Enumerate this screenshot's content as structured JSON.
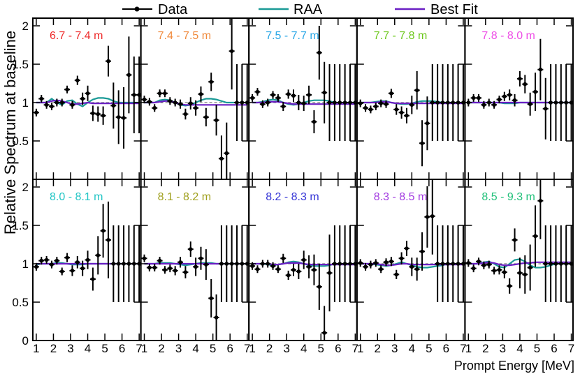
{
  "chart_data": {
    "type": "scatter",
    "ylabel": "Relative Spectrum at baseline",
    "xlabel": "Prompt Energy [MeV]",
    "xlim": [
      0.8,
      7.1
    ],
    "ylim": [
      0,
      2.1
    ],
    "x_ticks": [
      "1",
      "2",
      "3",
      "4",
      "5",
      "6",
      "7"
    ],
    "y_ticks": [
      "0",
      "0.5",
      "1",
      "1.5",
      "2"
    ],
    "legend": {
      "position": "top",
      "entries": [
        {
          "label": "Data",
          "color": "#000000",
          "kind": "marker"
        },
        {
          "label": "RAA",
          "color": "#1a9a96",
          "kind": "line"
        },
        {
          "label": "Best Fit",
          "color": "#6a1fc4",
          "kind": "line"
        }
      ]
    },
    "x": [
      1.0,
      1.3,
      1.6,
      1.9,
      2.2,
      2.5,
      2.8,
      3.1,
      3.4,
      3.7,
      4.0,
      4.3,
      4.6,
      4.9,
      5.2,
      5.5,
      5.8,
      6.1,
      6.4,
      6.7,
      7.0
    ],
    "panels": [
      {
        "label": "6.7 - 7.4 m",
        "color": "#ee2b2b",
        "y": [
          0.87,
          1.05,
          0.97,
          0.95,
          1.0,
          1.0,
          1.17,
          0.97,
          1.29,
          1.05,
          1.12,
          0.86,
          0.85,
          0.83,
          1.54,
          0.96,
          0.81,
          0.8,
          1.36,
          1.1,
          1.1
        ],
        "err": [
          0.05,
          0.05,
          0.05,
          0.05,
          0.05,
          0.05,
          0.05,
          0.05,
          0.06,
          0.08,
          0.1,
          0.1,
          0.1,
          0.12,
          0.2,
          0.3,
          0.35,
          0.4,
          0.5,
          0.5,
          0.5
        ],
        "raa": [
          1.0,
          1.0,
          1.0,
          1.05,
          1.0,
          0.97,
          1.02,
          1.03,
          0.98,
          0.95,
          1.0,
          1.04,
          1.06,
          1.06,
          1.05,
          1.02,
          1.0,
          1.0,
          1.0,
          1.0,
          1.0
        ],
        "fit": [
          1.0,
          1.0,
          1.0,
          1.02,
          1.03,
          1.02,
          1.0,
          0.98,
          0.98,
          0.99,
          1.0,
          0.99,
          0.99,
          0.99,
          0.99,
          0.99,
          0.99,
          0.99,
          0.99,
          0.99,
          0.99
        ]
      },
      {
        "label": "7.4 - 7.5 m",
        "color": "#f08a3c",
        "y": [
          1.04,
          1.01,
          0.93,
          1.12,
          1.12,
          1.02,
          1.0,
          0.98,
          0.85,
          0.99,
          0.93,
          1.11,
          0.81,
          1.27,
          0.77,
          0.27,
          0.34,
          1.67,
          1.0,
          1.0,
          1.0
        ],
        "err": [
          0.05,
          0.05,
          0.05,
          0.05,
          0.05,
          0.05,
          0.05,
          0.06,
          0.07,
          0.08,
          0.1,
          0.1,
          0.12,
          0.12,
          0.2,
          0.3,
          0.4,
          0.5,
          0.5,
          0.5,
          0.5
        ],
        "raa": [
          1.0,
          1.0,
          1.0,
          1.03,
          1.04,
          1.03,
          1.0,
          0.97,
          0.96,
          0.97,
          1.0,
          1.03,
          1.05,
          1.05,
          1.04,
          1.02,
          1.0,
          1.0,
          1.0,
          1.0,
          1.0
        ],
        "fit": [
          1.0,
          1.0,
          1.0,
          1.01,
          1.02,
          1.02,
          1.0,
          0.98,
          0.97,
          0.97,
          0.97,
          0.97,
          0.97,
          0.97,
          0.97,
          0.97,
          0.97,
          0.97,
          0.97,
          0.97,
          0.97
        ]
      },
      {
        "label": "7.5 - 7.7 m",
        "color": "#2aa7e6",
        "y": [
          1.06,
          1.14,
          0.98,
          1.0,
          1.1,
          1.06,
          0.95,
          1.11,
          1.09,
          1.0,
          0.99,
          1.1,
          0.75,
          1.65,
          1.13,
          1.0,
          1.0,
          1.0,
          1.0,
          1.0,
          1.0
        ],
        "err": [
          0.05,
          0.05,
          0.05,
          0.05,
          0.05,
          0.05,
          0.06,
          0.06,
          0.08,
          0.1,
          0.1,
          0.12,
          0.15,
          0.35,
          0.4,
          0.5,
          0.5,
          0.5,
          0.5,
          0.5,
          0.5
        ],
        "raa": [
          1.0,
          1.0,
          1.01,
          1.03,
          1.04,
          1.03,
          1.0,
          0.98,
          0.97,
          0.98,
          1.0,
          1.02,
          1.03,
          1.03,
          1.03,
          1.02,
          1.0,
          1.0,
          1.0,
          1.0,
          1.0
        ],
        "fit": [
          1.0,
          1.0,
          1.0,
          1.01,
          1.01,
          1.01,
          1.0,
          0.99,
          0.98,
          0.98,
          0.98,
          0.98,
          0.98,
          0.98,
          0.98,
          0.98,
          0.98,
          0.98,
          0.98,
          0.98,
          0.98
        ]
      },
      {
        "label": "7.7 - 7.8 m",
        "color": "#6ec81e",
        "y": [
          0.99,
          0.93,
          0.91,
          0.95,
          0.99,
          0.98,
          1.12,
          0.91,
          0.87,
          0.83,
          0.97,
          1.16,
          0.47,
          0.73,
          1.0,
          1.0,
          1.0,
          1.0,
          1.0,
          1.0,
          1.0
        ],
        "err": [
          0.05,
          0.05,
          0.05,
          0.05,
          0.05,
          0.05,
          0.06,
          0.07,
          0.08,
          0.1,
          0.12,
          0.25,
          0.3,
          0.35,
          0.5,
          0.5,
          0.5,
          0.5,
          0.5,
          0.5,
          0.5
        ],
        "raa": [
          1.0,
          1.0,
          1.0,
          1.01,
          1.02,
          1.02,
          1.0,
          0.99,
          0.98,
          0.98,
          0.99,
          1.01,
          1.02,
          1.02,
          1.02,
          1.01,
          1.0,
          1.0,
          1.0,
          1.0,
          1.0
        ],
        "fit": [
          1.0,
          1.0,
          1.0,
          1.0,
          1.01,
          1.01,
          1.0,
          0.99,
          0.99,
          0.99,
          0.99,
          0.99,
          0.99,
          0.99,
          0.99,
          0.99,
          0.99,
          0.99,
          0.99,
          0.99,
          0.99
        ]
      },
      {
        "label": "7.8 - 8.0 m",
        "color": "#ee4de6",
        "y": [
          1.0,
          1.06,
          1.06,
          0.97,
          1.0,
          0.97,
          1.04,
          1.08,
          1.1,
          1.03,
          1.31,
          1.24,
          0.98,
          1.14,
          1.43,
          0.92,
          1.0,
          1.0,
          1.0,
          1.0,
          1.0
        ],
        "err": [
          0.05,
          0.05,
          0.05,
          0.05,
          0.05,
          0.05,
          0.05,
          0.06,
          0.07,
          0.08,
          0.1,
          0.12,
          0.15,
          0.25,
          0.4,
          0.4,
          0.5,
          0.5,
          0.5,
          0.5,
          0.5
        ],
        "raa": [
          1.0,
          1.0,
          1.0,
          1.0,
          1.0,
          1.0,
          1.0,
          0.99,
          0.99,
          0.99,
          1.0,
          1.0,
          1.0,
          1.0,
          1.0,
          1.0,
          1.0,
          1.0,
          1.0,
          1.0,
          1.0
        ],
        "fit": [
          1.0,
          1.0,
          1.0,
          1.0,
          1.0,
          1.0,
          1.0,
          1.0,
          1.0,
          1.0,
          1.0,
          1.0,
          1.0,
          1.0,
          1.0,
          1.0,
          1.0,
          1.0,
          1.0,
          1.0,
          1.0
        ]
      },
      {
        "label": "8.0 - 8.1 m",
        "color": "#22c5c5",
        "y": [
          0.96,
          1.04,
          1.05,
          0.99,
          1.04,
          0.9,
          1.08,
          0.91,
          1.02,
          0.94,
          1.05,
          0.8,
          1.11,
          1.43,
          1.31,
          1.0,
          1.0,
          1.0,
          1.0,
          1.0,
          1.0
        ],
        "err": [
          0.05,
          0.05,
          0.05,
          0.05,
          0.05,
          0.05,
          0.06,
          0.07,
          0.08,
          0.1,
          0.12,
          0.15,
          0.25,
          0.35,
          0.5,
          0.5,
          0.5,
          0.5,
          0.5,
          0.5,
          0.5
        ],
        "raa": [
          0.99,
          1.0,
          1.0,
          1.0,
          1.01,
          1.01,
          1.0,
          0.99,
          0.99,
          0.99,
          1.0,
          1.0,
          1.0,
          1.0,
          1.0,
          1.0,
          1.0,
          1.0,
          1.0,
          1.0,
          1.0
        ],
        "fit": [
          1.0,
          1.0,
          1.0,
          1.0,
          1.0,
          1.0,
          1.0,
          1.0,
          1.0,
          1.0,
          1.0,
          1.0,
          1.0,
          1.0,
          1.0,
          1.0,
          1.0,
          1.0,
          1.0,
          1.0,
          1.0
        ]
      },
      {
        "label": "8.1 - 8.2 m",
        "color": "#a0a01e",
        "y": [
          1.07,
          0.95,
          0.95,
          1.04,
          0.92,
          0.94,
          0.91,
          1.02,
          0.89,
          1.19,
          0.96,
          1.07,
          0.99,
          0.55,
          0.3,
          1.0,
          1.0,
          1.0,
          1.0,
          1.0,
          1.0
        ],
        "err": [
          0.05,
          0.05,
          0.05,
          0.05,
          0.05,
          0.05,
          0.06,
          0.07,
          0.08,
          0.1,
          0.12,
          0.15,
          0.2,
          0.25,
          0.3,
          0.5,
          0.5,
          0.5,
          0.5,
          0.5,
          0.5
        ],
        "raa": [
          1.0,
          1.0,
          1.0,
          1.01,
          1.01,
          1.01,
          1.0,
          0.99,
          0.98,
          0.99,
          1.0,
          1.01,
          1.01,
          1.01,
          1.0,
          1.0,
          1.0,
          1.0,
          1.0,
          1.0,
          1.0
        ],
        "fit": [
          1.0,
          1.0,
          1.0,
          1.0,
          1.0,
          1.0,
          1.0,
          1.0,
          1.0,
          1.0,
          1.0,
          1.0,
          1.0,
          1.0,
          1.0,
          1.0,
          1.0,
          1.0,
          1.0,
          1.0,
          1.0
        ]
      },
      {
        "label": "8.2 - 8.3 m",
        "color": "#3535d6",
        "y": [
          0.97,
          0.93,
          1.0,
          1.0,
          0.97,
          0.93,
          1.07,
          0.85,
          0.92,
          0.9,
          1.05,
          0.96,
          0.92,
          0.7,
          0.1,
          0.88,
          1.0,
          1.0,
          1.0,
          1.0,
          1.0
        ],
        "err": [
          0.05,
          0.05,
          0.05,
          0.05,
          0.05,
          0.05,
          0.06,
          0.06,
          0.08,
          0.1,
          0.12,
          0.15,
          0.2,
          0.3,
          0.35,
          0.5,
          0.5,
          0.5,
          0.5,
          0.5,
          0.5
        ],
        "raa": [
          1.0,
          1.0,
          1.0,
          0.99,
          0.98,
          0.99,
          1.0,
          1.02,
          1.03,
          1.02,
          1.0,
          0.98,
          0.97,
          0.97,
          0.97,
          0.98,
          1.0,
          1.0,
          1.0,
          1.0,
          1.0
        ],
        "fit": [
          1.0,
          1.0,
          1.0,
          1.0,
          0.99,
          0.99,
          1.0,
          1.01,
          1.01,
          1.01,
          1.0,
          0.99,
          0.99,
          0.99,
          0.99,
          0.99,
          0.99,
          0.99,
          0.99,
          0.99,
          0.99
        ]
      },
      {
        "label": "8.3 - 8.5 m",
        "color": "#a23be0",
        "y": [
          1.01,
          0.96,
          0.99,
          1.01,
          0.93,
          1.02,
          1.03,
          0.86,
          1.07,
          1.2,
          0.96,
          0.93,
          1.16,
          1.61,
          1.62,
          1.0,
          1.0,
          1.0,
          1.0,
          1.0,
          1.0
        ],
        "err": [
          0.05,
          0.05,
          0.05,
          0.05,
          0.05,
          0.05,
          0.06,
          0.06,
          0.08,
          0.1,
          0.12,
          0.15,
          0.25,
          0.4,
          0.5,
          0.5,
          0.5,
          0.5,
          0.5,
          0.5,
          0.5
        ],
        "raa": [
          1.0,
          1.0,
          1.0,
          0.99,
          0.98,
          0.97,
          0.98,
          1.0,
          1.02,
          1.0,
          0.98,
          0.96,
          0.95,
          0.95,
          0.96,
          0.97,
          0.98,
          1.0,
          1.0,
          1.0,
          1.0
        ],
        "fit": [
          1.0,
          1.0,
          1.0,
          1.0,
          0.99,
          0.98,
          0.98,
          0.99,
          1.0,
          1.0,
          0.99,
          0.99,
          0.99,
          0.99,
          0.99,
          0.99,
          0.99,
          0.99,
          0.99,
          0.99,
          0.99
        ]
      },
      {
        "label": "8.5 - 9.3 m",
        "color": "#22c07a",
        "y": [
          1.01,
          0.94,
          1.03,
          0.98,
          0.99,
          0.91,
          0.92,
          0.89,
          0.71,
          1.31,
          0.88,
          0.86,
          0.95,
          1.36,
          1.82,
          1.0,
          1.0,
          1.0,
          1.0,
          1.0,
          1.0
        ],
        "err": [
          0.05,
          0.05,
          0.05,
          0.05,
          0.05,
          0.05,
          0.06,
          0.08,
          0.1,
          0.15,
          0.2,
          0.25,
          0.3,
          0.4,
          0.5,
          0.5,
          0.5,
          0.5,
          0.5,
          0.5,
          0.5
        ],
        "raa": [
          1.0,
          1.0,
          1.0,
          1.02,
          1.03,
          1.0,
          0.96,
          0.95,
          1.0,
          1.05,
          1.06,
          1.03,
          0.98,
          0.95,
          0.95,
          0.96,
          0.98,
          1.0,
          1.0,
          1.0,
          1.0
        ],
        "fit": [
          1.0,
          1.0,
          1.0,
          1.01,
          1.02,
          1.01,
          0.99,
          0.98,
          0.98,
          0.99,
          1.0,
          1.01,
          1.01,
          1.02,
          1.02,
          1.02,
          1.02,
          1.02,
          1.02,
          1.02,
          1.02
        ]
      }
    ]
  }
}
